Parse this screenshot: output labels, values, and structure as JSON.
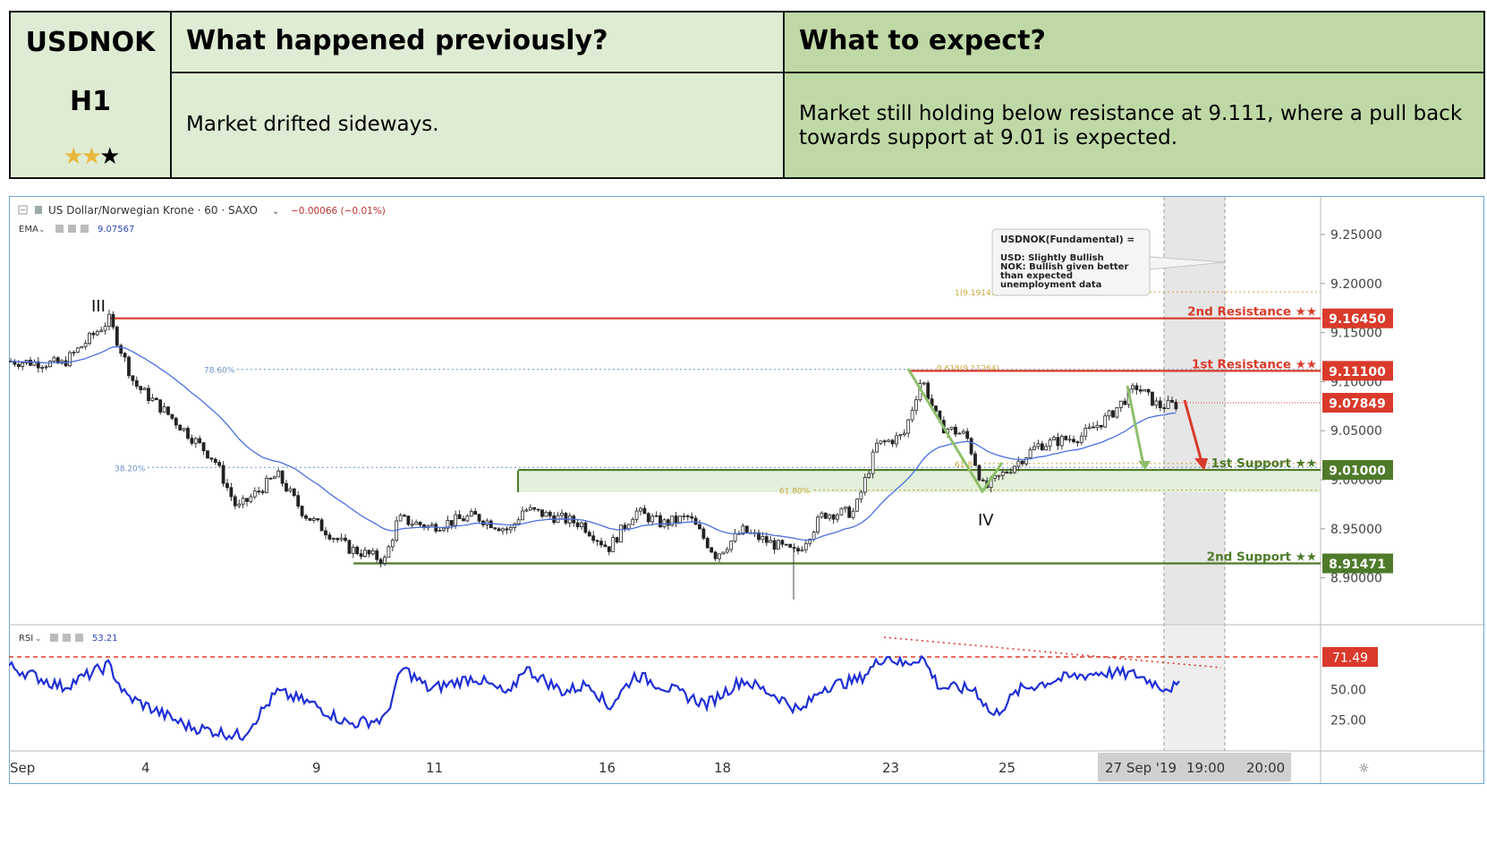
{
  "header": {
    "symbol": "USDNOK",
    "timeframe": "H1",
    "rating": {
      "filled": 2,
      "total": 3
    },
    "prev_title": "What happened previously?",
    "prev_text": "Market drifted sideways.",
    "expect_title": "What to expect?",
    "expect_text": "Market still holding below resistance at 9.111, where a pull back towards support at 9.01 is expected."
  },
  "chart_data": {
    "type": "candlestick",
    "title": "US Dollar/Norwegian Krone · 60 · SAXO",
    "change": "−0.00066 (−0.01%)",
    "ema_label": "EMA",
    "ema_value": "9.07567",
    "rsi_label": "RSI",
    "rsi_value": "53.21",
    "x_ticks": [
      "Sep",
      "4",
      "9",
      "11",
      "16",
      "18",
      "23",
      "25",
      "27 Sep '19",
      "19:00",
      "20:00"
    ],
    "y_ticks": [
      "9.25000",
      "9.20000",
      "9.15000",
      "9.10000",
      "9.05000",
      "9.00000",
      "8.95000",
      "8.90000"
    ],
    "ylim": [
      8.865,
      9.27
    ],
    "rsi_ticks": [
      "25.00",
      "50.00"
    ],
    "rsi_lim": [
      0,
      100
    ],
    "levels": [
      {
        "label": "2nd Resistance ★★",
        "value": 9.1645,
        "text": "9.16450",
        "color": "#d93a2b"
      },
      {
        "label": "1st Resistance ★★",
        "value": 9.111,
        "text": "9.11100",
        "color": "#d93a2b"
      },
      {
        "label": "1st Support ★★",
        "value": 9.01,
        "text": "9.01000",
        "color": "#4e7a2a"
      },
      {
        "label": "2nd Support ★★",
        "value": 8.91471,
        "text": "8.91471",
        "color": "#4e7a2a"
      }
    ],
    "last_price": {
      "value": 9.07849,
      "text": "9.07849"
    },
    "rsi_level": {
      "value": 71.49,
      "text": "71.49"
    },
    "fib_labels": [
      "78.60%",
      "38.20%",
      "61.80%",
      "0.618(9.11264)",
      "1(9.19149)",
      "61.8"
    ],
    "wave_labels": [
      "III",
      "IV"
    ],
    "note": {
      "title": "USDNOK(Fundamental) =",
      "lines": [
        "USD: Slightly Bullish",
        "NOK: Bullish given better",
        "than expected",
        "unemployment data"
      ]
    },
    "price_anchors": [
      [
        0,
        9.121
      ],
      [
        60,
        9.118
      ],
      [
        112,
        9.163
      ],
      [
        140,
        9.098
      ],
      [
        180,
        9.065
      ],
      [
        230,
        9.02
      ],
      [
        255,
        8.97
      ],
      [
        300,
        9.005
      ],
      [
        330,
        8.965
      ],
      [
        380,
        8.93
      ],
      [
        420,
        8.918
      ],
      [
        435,
        8.96
      ],
      [
        470,
        8.952
      ],
      [
        520,
        8.963
      ],
      [
        560,
        8.948
      ],
      [
        575,
        8.97
      ],
      [
        610,
        8.962
      ],
      [
        640,
        8.955
      ],
      [
        670,
        8.93
      ],
      [
        700,
        8.968
      ],
      [
        730,
        8.955
      ],
      [
        760,
        8.962
      ],
      [
        790,
        8.923
      ],
      [
        820,
        8.948
      ],
      [
        850,
        8.936
      ],
      [
        880,
        8.925
      ],
      [
        910,
        8.965
      ],
      [
        945,
        8.967
      ],
      [
        970,
        9.035
      ],
      [
        1000,
        9.045
      ],
      [
        1020,
        9.104
      ],
      [
        1040,
        9.055
      ],
      [
        1070,
        9.045
      ],
      [
        1090,
        8.99
      ],
      [
        1110,
        9.005
      ],
      [
        1150,
        9.035
      ],
      [
        1200,
        9.045
      ],
      [
        1230,
        9.065
      ],
      [
        1260,
        9.095
      ],
      [
        1285,
        9.075
      ],
      [
        1310,
        9.077
      ]
    ],
    "rsi_anchors": [
      [
        0,
        69
      ],
      [
        60,
        52
      ],
      [
        112,
        70
      ],
      [
        130,
        45
      ],
      [
        200,
        20
      ],
      [
        260,
        12
      ],
      [
        300,
        48
      ],
      [
        340,
        38
      ],
      [
        380,
        22
      ],
      [
        420,
        26
      ],
      [
        440,
        68
      ],
      [
        470,
        50
      ],
      [
        520,
        60
      ],
      [
        560,
        45
      ],
      [
        575,
        68
      ],
      [
        620,
        48
      ],
      [
        650,
        55
      ],
      [
        670,
        35
      ],
      [
        700,
        62
      ],
      [
        740,
        50
      ],
      [
        780,
        38
      ],
      [
        820,
        58
      ],
      [
        860,
        44
      ],
      [
        885,
        32
      ],
      [
        910,
        52
      ],
      [
        950,
        58
      ],
      [
        980,
        78
      ],
      [
        1000,
        70
      ],
      [
        1020,
        77
      ],
      [
        1040,
        52
      ],
      [
        1080,
        50
      ],
      [
        1100,
        28
      ],
      [
        1130,
        50
      ],
      [
        1170,
        58
      ],
      [
        1220,
        64
      ],
      [
        1260,
        62
      ],
      [
        1290,
        52
      ],
      [
        1310,
        52
      ]
    ]
  }
}
